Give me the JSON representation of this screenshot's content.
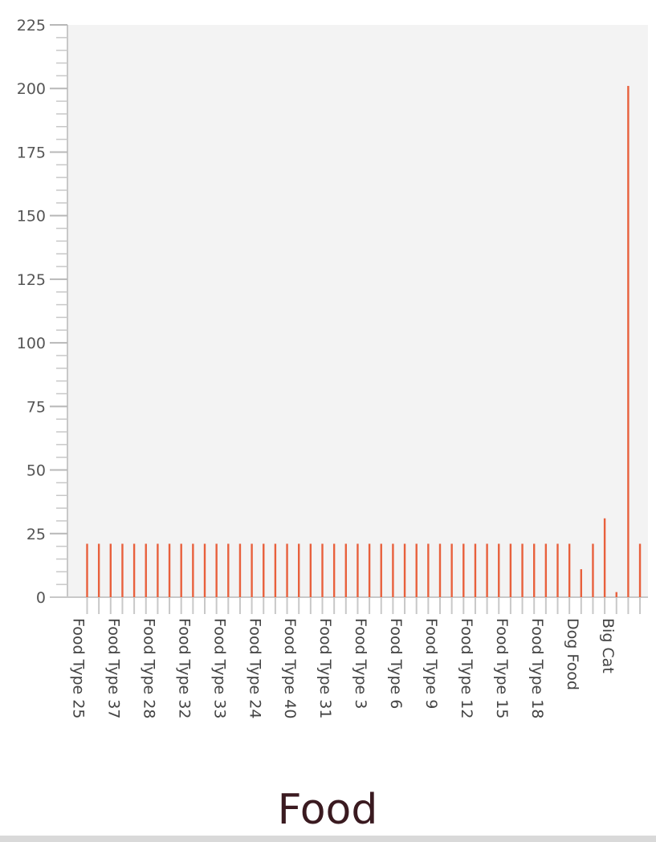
{
  "chart_data": {
    "type": "bar",
    "title": "Food",
    "ylim": [
      0,
      225
    ],
    "y_ticks": [
      0,
      25,
      50,
      75,
      100,
      125,
      150,
      175,
      200,
      225
    ],
    "categories": [
      "Food Type 25",
      "",
      "",
      "Food Type 37",
      "",
      "",
      "Food Type 28",
      "",
      "",
      "Food Type 32",
      "",
      "",
      "Food Type 33",
      "",
      "",
      "Food Type 24",
      "",
      "",
      "Food Type 40",
      "",
      "",
      "Food Type 31",
      "",
      "",
      "Food Type 3",
      "",
      "",
      "Food Type 6",
      "",
      "",
      "Food Type 9",
      "",
      "",
      "Food Type 12",
      "",
      "",
      "Food Type 15",
      "",
      "",
      "Food Type 18",
      "",
      "",
      "Dog Food",
      "",
      "",
      "Big Cat",
      "",
      ""
    ],
    "values": [
      21,
      21,
      21,
      21,
      21,
      21,
      21,
      21,
      21,
      21,
      21,
      21,
      21,
      21,
      21,
      21,
      21,
      21,
      21,
      21,
      21,
      21,
      21,
      21,
      21,
      21,
      21,
      21,
      21,
      21,
      21,
      21,
      21,
      21,
      21,
      21,
      21,
      21,
      21,
      21,
      21,
      21,
      11,
      21,
      31,
      2,
      201,
      21
    ],
    "bar_color": "#e8603c",
    "plot_background": "#f3f3f3",
    "axis_color": "#c8c8c8",
    "grid": false,
    "legend": "none"
  }
}
